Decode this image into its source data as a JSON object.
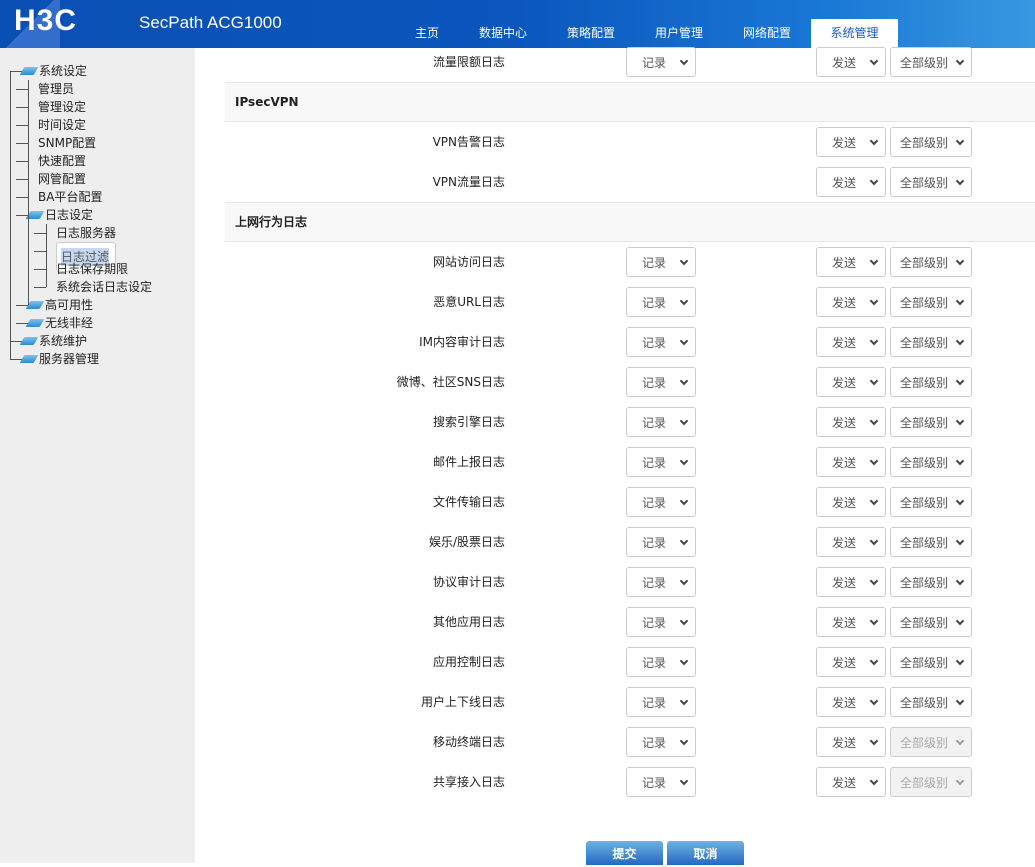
{
  "header": {
    "logo": "H3C",
    "product": "SecPath ACG1000",
    "tabs": [
      {
        "label": "主页"
      },
      {
        "label": "数据中心"
      },
      {
        "label": "策略配置"
      },
      {
        "label": "用户管理"
      },
      {
        "label": "网络配置"
      },
      {
        "label": "系统管理",
        "active": true
      }
    ]
  },
  "sidebar": {
    "items": [
      {
        "label": "系统设定",
        "level": 0,
        "folder": true
      },
      {
        "label": "管理员",
        "level": 1
      },
      {
        "label": "管理设定",
        "level": 1
      },
      {
        "label": "时间设定",
        "level": 1
      },
      {
        "label": "SNMP配置",
        "level": 1
      },
      {
        "label": "快速配置",
        "level": 1
      },
      {
        "label": "网管配置",
        "level": 1
      },
      {
        "label": "BA平台配置",
        "level": 1
      },
      {
        "label": "日志设定",
        "level": 1,
        "folder": true
      },
      {
        "label": "日志服务器",
        "level": 2
      },
      {
        "label": "日志过滤",
        "level": 2,
        "selected": true
      },
      {
        "label": "日志保存期限",
        "level": 2
      },
      {
        "label": "系统会话日志设定",
        "level": 2
      },
      {
        "label": "高可用性",
        "level": 1,
        "folder": true
      },
      {
        "label": "无线非经",
        "level": 1,
        "folder": true
      },
      {
        "label": "系统维护",
        "level": 0,
        "folder": true
      },
      {
        "label": "服务器管理",
        "level": 0,
        "folder": true
      }
    ]
  },
  "rows": [
    {
      "label": "流量限额日志",
      "record": "记录",
      "send": "发送",
      "level": "全部级别"
    },
    {
      "section": "IPsecVPN"
    },
    {
      "label": "VPN告警日志",
      "send": "发送",
      "level": "全部级别"
    },
    {
      "label": "VPN流量日志",
      "send": "发送",
      "level": "全部级别"
    },
    {
      "section": "上网行为日志"
    },
    {
      "label": "网站访问日志",
      "record": "记录",
      "send": "发送",
      "level": "全部级别"
    },
    {
      "label": "恶意URL日志",
      "record": "记录",
      "send": "发送",
      "level": "全部级别"
    },
    {
      "label": "IM内容审计日志",
      "record": "记录",
      "send": "发送",
      "level": "全部级别"
    },
    {
      "label": "微博、社区SNS日志",
      "record": "记录",
      "send": "发送",
      "level": "全部级别"
    },
    {
      "label": "搜索引擎日志",
      "record": "记录",
      "send": "发送",
      "level": "全部级别"
    },
    {
      "label": "邮件上报日志",
      "record": "记录",
      "send": "发送",
      "level": "全部级别"
    },
    {
      "label": "文件传输日志",
      "record": "记录",
      "send": "发送",
      "level": "全部级别"
    },
    {
      "label": "娱乐/股票日志",
      "record": "记录",
      "send": "发送",
      "level": "全部级别"
    },
    {
      "label": "协议审计日志",
      "record": "记录",
      "send": "发送",
      "level": "全部级别"
    },
    {
      "label": "其他应用日志",
      "record": "记录",
      "send": "发送",
      "level": "全部级别"
    },
    {
      "label": "应用控制日志",
      "record": "记录",
      "send": "发送",
      "level": "全部级别"
    },
    {
      "label": "用户上下线日志",
      "record": "记录",
      "send": "发送",
      "level": "全部级别"
    },
    {
      "label": "移动终端日志",
      "record": "记录",
      "send": "发送",
      "level": "全部级别",
      "level_disabled": true
    },
    {
      "label": "共享接入日志",
      "record": "记录",
      "send": "发送",
      "level": "全部级别",
      "level_disabled": true
    }
  ],
  "buttons": {
    "submit": "提交",
    "cancel": "取消"
  }
}
